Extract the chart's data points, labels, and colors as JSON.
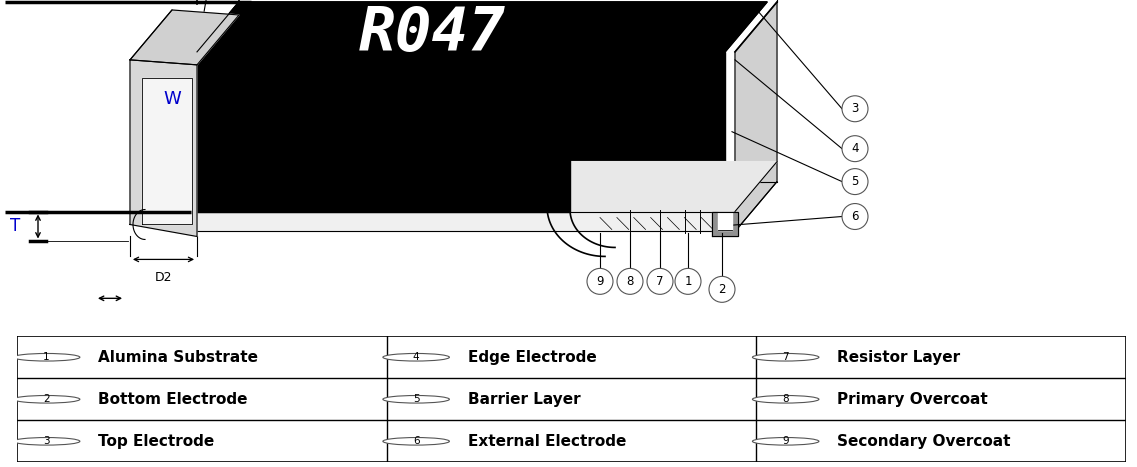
{
  "background_color": "#ffffff",
  "fig_width": 11.37,
  "fig_height": 4.67,
  "table_entries": [
    [
      "1",
      "Alumina Substrate",
      "4",
      "Edge Electrode",
      "7",
      "Resistor Layer"
    ],
    [
      "2",
      "Bottom Electrode",
      "5",
      "Barrier Layer",
      "8",
      "Primary Overcoat"
    ],
    [
      "3",
      "Top Electrode",
      "6",
      "External Electrode",
      "9",
      "Secondary Overcoat"
    ]
  ],
  "resistor_text": "R047",
  "line_color": "#000000",
  "gray_light": "#e0e0e0",
  "gray_mid": "#c0c0c0",
  "gray_dark": "#888888",
  "black": "#000000",
  "white": "#ffffff",
  "dim_color": "#0000cc",
  "BL": 1.75,
  "BR": 7.2,
  "BB": 1.05,
  "BT": 2.85,
  "OX": 0.42,
  "OY": 0.5
}
